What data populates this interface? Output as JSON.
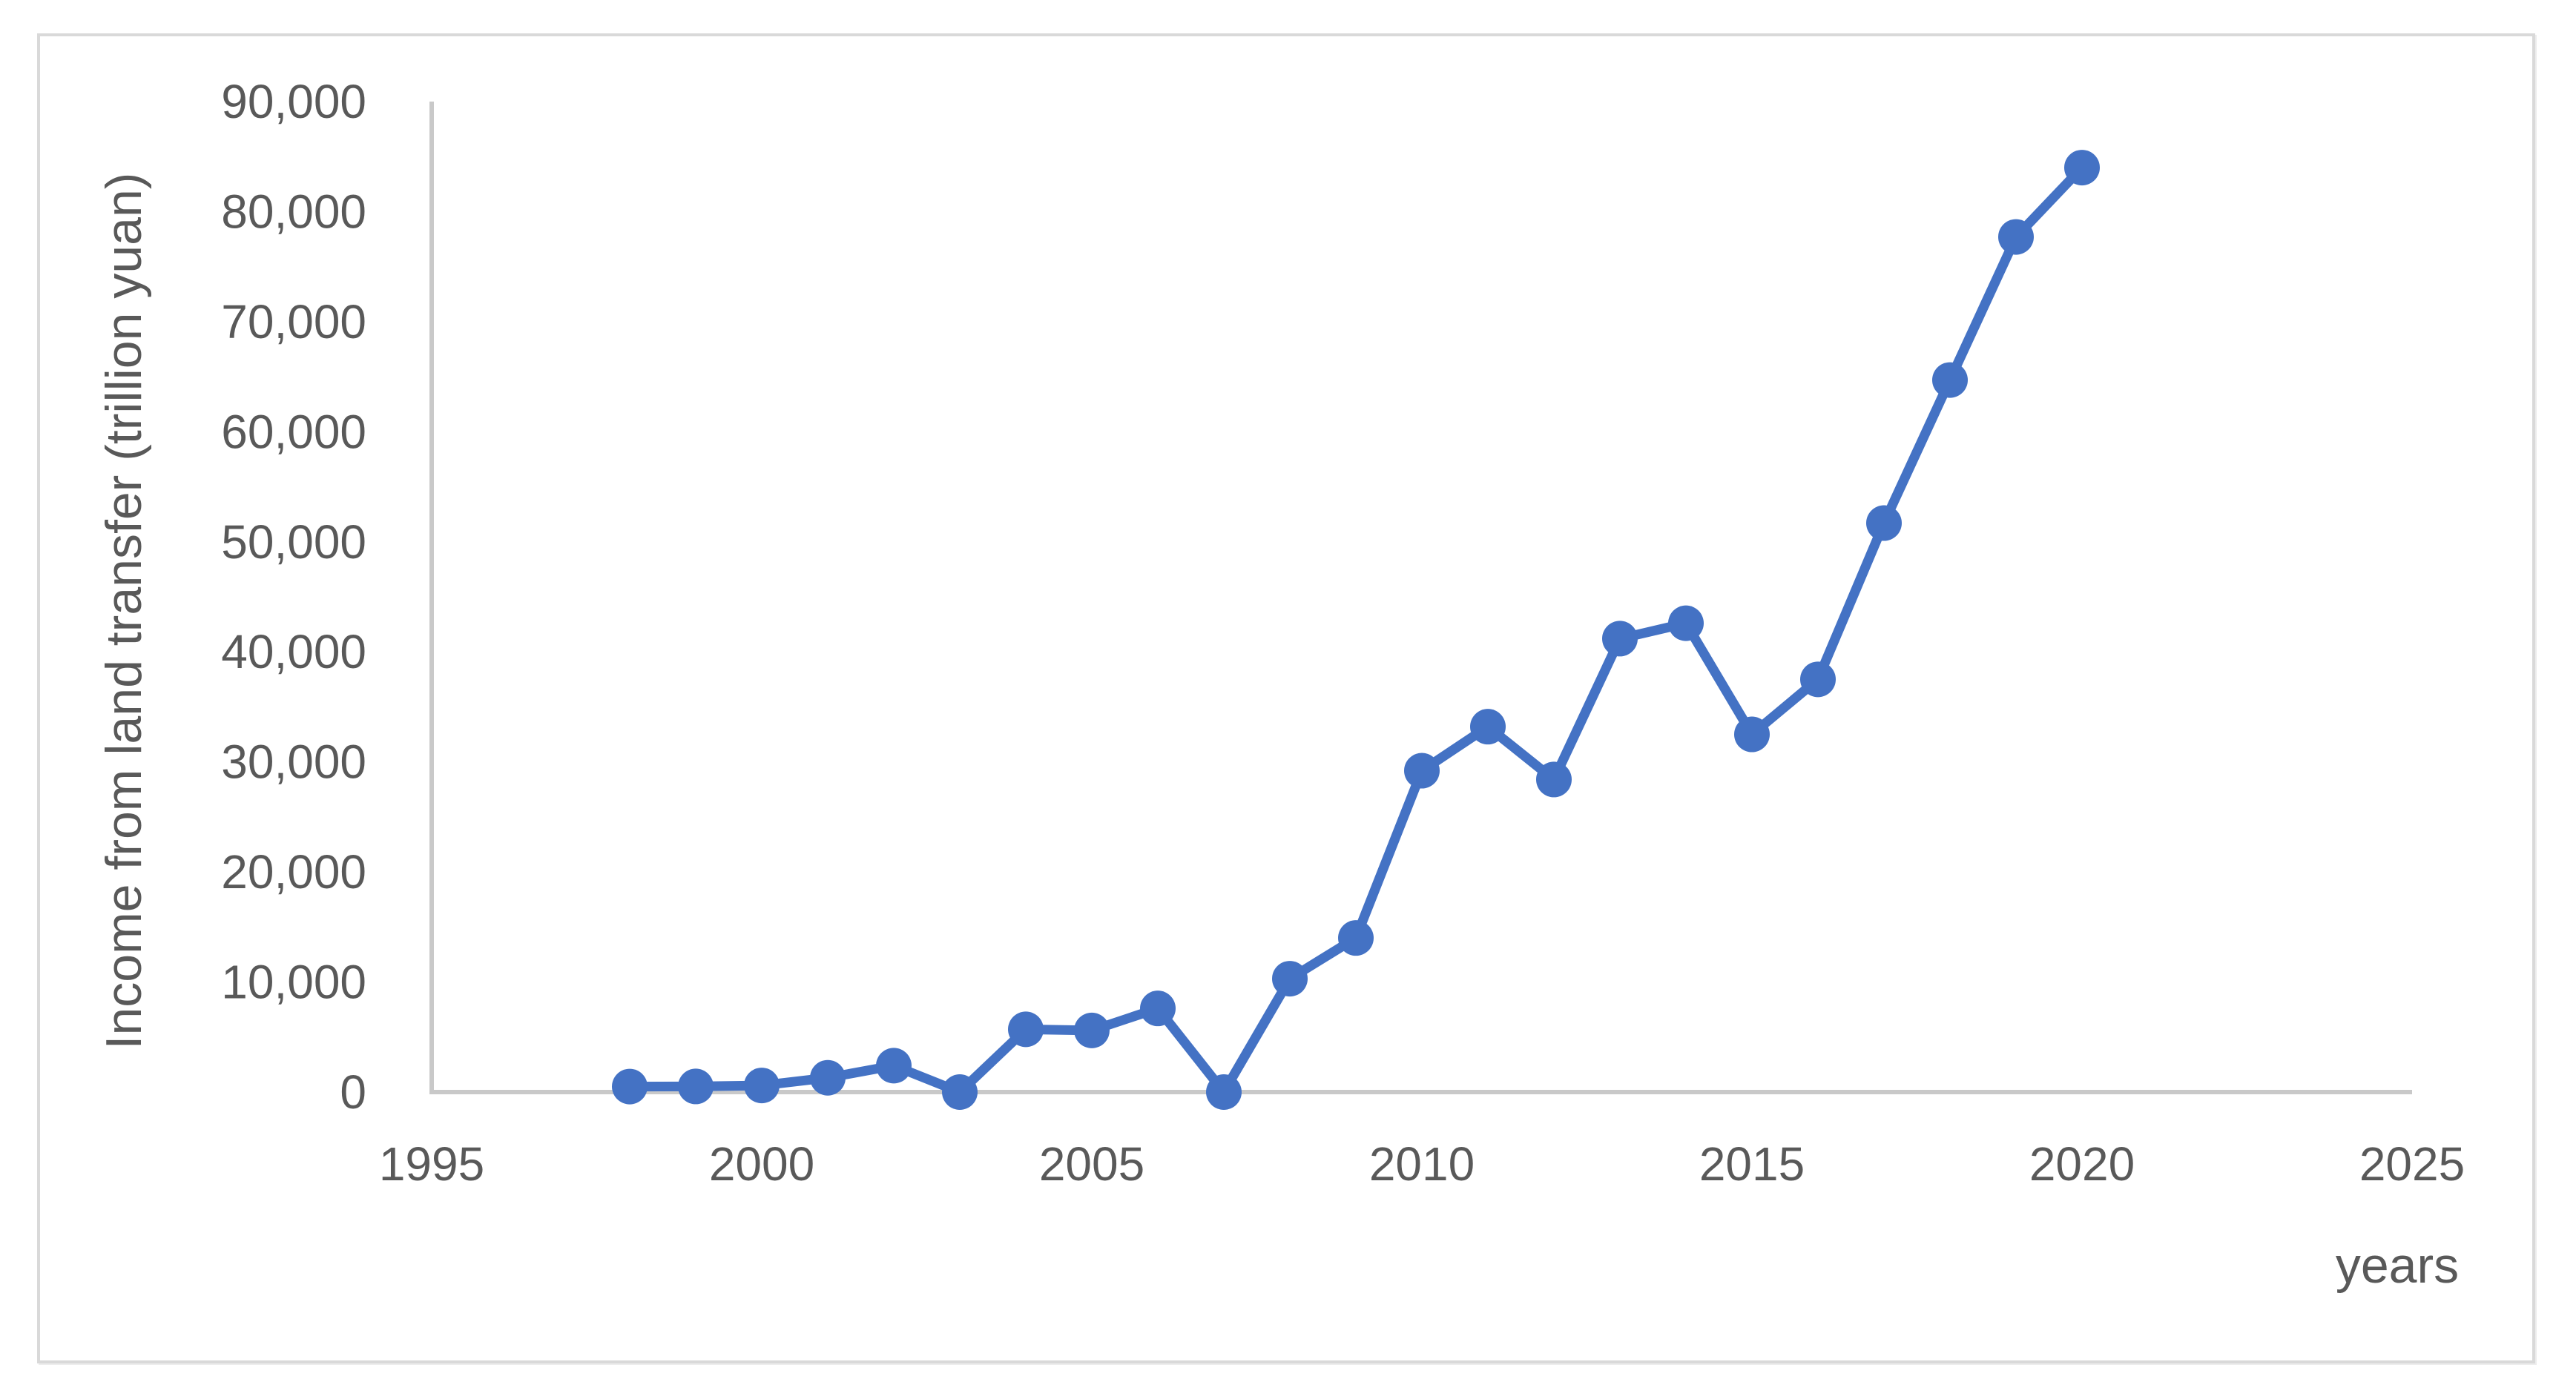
{
  "chart_data": {
    "type": "line",
    "title": "",
    "xlabel": "years",
    "ylabel": "Income from land transfer (trillion yuan)",
    "x": [
      1998,
      1999,
      2000,
      2001,
      2002,
      2003,
      2004,
      2005,
      2006,
      2007,
      2008,
      2009,
      2010,
      2011,
      2012,
      2013,
      2014,
      2015,
      2016,
      2017,
      2018,
      2019,
      2020
    ],
    "values": [
      500,
      510,
      600,
      1300,
      2400,
      0,
      5700,
      5600,
      7600,
      0,
      10300,
      14000,
      29200,
      33200,
      28400,
      41200,
      42600,
      32500,
      37500,
      51700,
      64700,
      77700,
      84000
    ],
    "series_name": "Income from land transfer",
    "series_color": "#4472C4",
    "marker": "circle",
    "grid": "off",
    "legend": "none",
    "xlim": [
      1995,
      2025
    ],
    "ylim": [
      0,
      90000
    ],
    "x_ticks": [
      1995,
      2000,
      2005,
      2010,
      2015,
      2020,
      2025
    ],
    "y_ticks": [
      0,
      10000,
      20000,
      30000,
      40000,
      50000,
      60000,
      70000,
      80000,
      90000
    ],
    "y_tick_labels": [
      "0",
      "10,000",
      "20,000",
      "30,000",
      "40,000",
      "50,000",
      "60,000",
      "70,000",
      "80,000",
      "90,000"
    ],
    "axis_line_color": "#C9C9C9",
    "text_color": "#595959",
    "frame_border_color": "#D9D9D9"
  }
}
